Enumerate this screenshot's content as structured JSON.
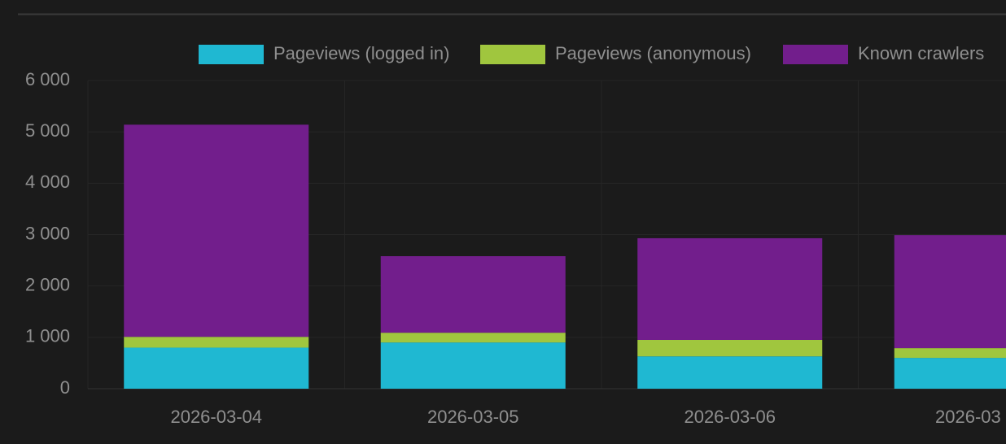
{
  "chart_data": {
    "type": "stacked-bar",
    "categories": [
      "2026-03-04",
      "2026-03-05",
      "2026-03-06",
      "2026-03"
    ],
    "series": [
      {
        "name": "Pageviews (logged in)",
        "color": "#1fb8d2",
        "values": [
          800,
          900,
          630,
          600
        ]
      },
      {
        "name": "Pageviews (anonymous)",
        "color": "#a0c63e",
        "values": [
          210,
          190,
          320,
          190
        ]
      },
      {
        "name": "Known crawlers",
        "color": "#721e8c",
        "values": [
          4130,
          1490,
          1980,
          2200
        ]
      }
    ],
    "ylim": [
      0,
      6000
    ],
    "yticks": [
      0,
      {
        "value": 1000,
        "label": "1 000"
      },
      {
        "value": 2000,
        "label": "2 000"
      },
      {
        "value": 3000,
        "label": "3 000"
      },
      {
        "value": 4000,
        "label": "4 000"
      },
      {
        "value": 5000,
        "label": "5 000"
      },
      {
        "value": 6000,
        "label": "6 000"
      }
    ],
    "grid": true,
    "legend": "top"
  }
}
